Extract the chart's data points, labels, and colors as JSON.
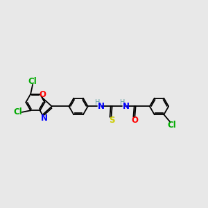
{
  "bg_color": "#e8e8e8",
  "bond_color": "#000000",
  "atom_colors": {
    "Cl": "#00aa00",
    "N": "#0000ff",
    "O": "#ff0000",
    "S": "#cccc00",
    "C": "#000000",
    "H": "#5f9ea0"
  },
  "line_width": 1.3,
  "font_size": 8.5,
  "r": 0.55
}
